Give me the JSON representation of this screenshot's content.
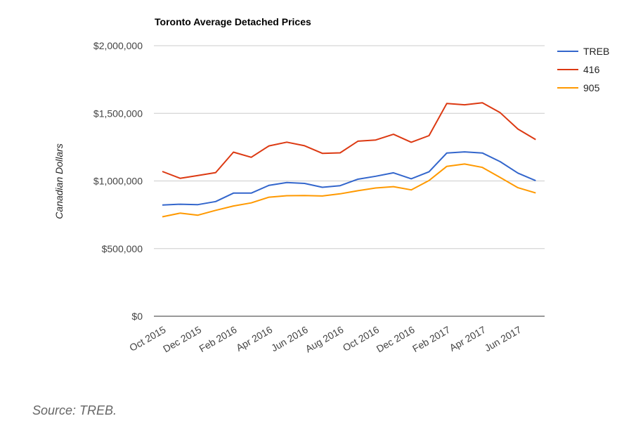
{
  "chart_data": {
    "type": "line",
    "title": "Toronto Average Detached Prices",
    "ylabel": "Canadian Dollars",
    "xlabel": "",
    "ylim": [
      0,
      2000000
    ],
    "y_ticks": [
      "$0",
      "$500,000",
      "$1,000,000",
      "$1,500,000",
      "$2,000,000"
    ],
    "y_tick_values": [
      0,
      500000,
      1000000,
      1500000,
      2000000
    ],
    "x": [
      "Oct 2015",
      "Nov 2015",
      "Dec 2015",
      "Jan 2016",
      "Feb 2016",
      "Mar 2016",
      "Apr 2016",
      "May 2016",
      "Jun 2016",
      "Jul 2016",
      "Aug 2016",
      "Sep 2016",
      "Oct 2016",
      "Nov 2016",
      "Dec 2016",
      "Jan 2017",
      "Feb 2017",
      "Mar 2017",
      "Apr 2017",
      "May 2017",
      "Jun 2017",
      "Jul 2017"
    ],
    "x_tick_labels": [
      "Oct 2015",
      "Dec 2015",
      "Feb 2016",
      "Apr 2016",
      "Jun 2016",
      "Aug 2016",
      "Oct 2016",
      "Dec 2016",
      "Feb 2017",
      "Apr 2017",
      "Jun 2017"
    ],
    "x_tick_indices": [
      0,
      2,
      4,
      6,
      8,
      10,
      12,
      14,
      16,
      18,
      20
    ],
    "grid": true,
    "legend_position": "right",
    "series": [
      {
        "name": "TREB",
        "color": "#3366cc",
        "values": [
          822000,
          828000,
          825000,
          848000,
          910000,
          910000,
          968000,
          988000,
          982000,
          953000,
          965000,
          1013000,
          1035000,
          1060000,
          1016000,
          1068000,
          1207000,
          1215000,
          1207000,
          1143000,
          1058000,
          1002000
        ]
      },
      {
        "name": "416",
        "color": "#dc3912",
        "values": [
          1070000,
          1020000,
          1040000,
          1062000,
          1213000,
          1175000,
          1259000,
          1287000,
          1260000,
          1204000,
          1208000,
          1294000,
          1303000,
          1345000,
          1286000,
          1335000,
          1573000,
          1563000,
          1578000,
          1505000,
          1384000,
          1306000
        ]
      },
      {
        "name": "905",
        "color": "#ff9900",
        "values": [
          735000,
          762000,
          747000,
          783000,
          815000,
          838000,
          880000,
          891000,
          892000,
          889000,
          905000,
          928000,
          948000,
          958000,
          934000,
          1003000,
          1108000,
          1125000,
          1100000,
          1026000,
          950000,
          911000
        ]
      }
    ]
  },
  "source_text": "Source: TREB."
}
